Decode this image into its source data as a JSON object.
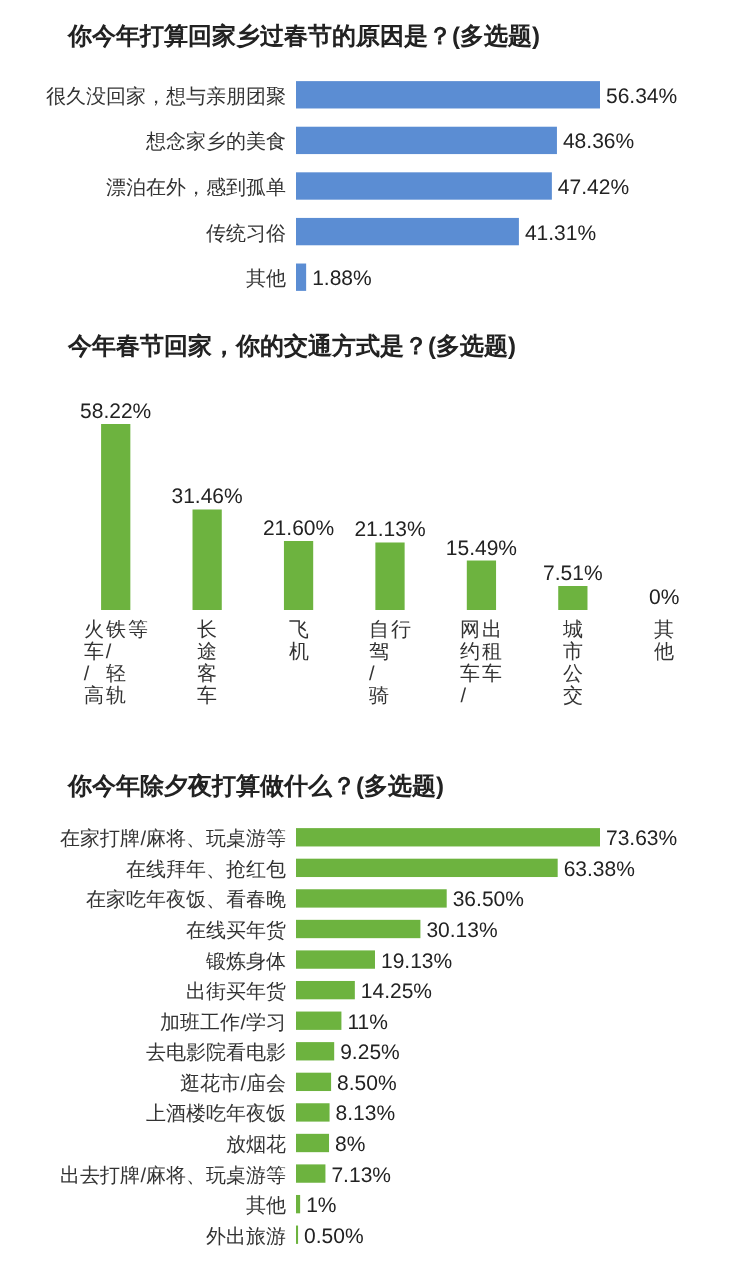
{
  "chart_data": [
    {
      "type": "bar",
      "orientation": "horizontal",
      "title": "你今年打算回家乡过春节的原因是？(多选题)",
      "categories": [
        "很久没回家，想与亲朋团聚",
        "想念家乡的美食",
        "漂泊在外，感到孤单",
        "传统习俗",
        "其他"
      ],
      "values": [
        56.34,
        48.36,
        47.42,
        41.31,
        1.88
      ],
      "color": "#5b8dd3",
      "value_labels": [
        "56.34%",
        "48.36%",
        "47.42%",
        "41.31%",
        "1.88%"
      ]
    },
    {
      "type": "bar",
      "title": "今年春节回家，你的交通方式是？(多选题)",
      "categories": [
        "火车/高铁/轻轨等",
        "长途客车",
        "飞机",
        "自驾/骑行",
        "网约车/出租车",
        "城市公交",
        "其他"
      ],
      "values": [
        58.22,
        31.46,
        21.6,
        21.13,
        15.49,
        7.51,
        0
      ],
      "color": "#6db33f",
      "value_labels": [
        "58.22%",
        "31.46%",
        "21.60%",
        "21.13%",
        "15.49%",
        "7.51%",
        "0%"
      ]
    },
    {
      "type": "bar",
      "orientation": "horizontal",
      "title": "你今年除夕夜打算做什么？(多选题)",
      "categories": [
        "在家打牌/麻将、玩桌游等",
        "在线拜年、抢红包",
        "在家吃年夜饭、看春晚",
        "在线买年货",
        "锻炼身体",
        "出街买年货",
        "加班工作/学习",
        "去电影院看电影",
        "逛花市/庙会",
        "上酒楼吃年夜饭",
        "放烟花",
        "出去打牌/麻将、玩桌游等",
        "其他",
        "外出旅游"
      ],
      "values": [
        73.63,
        63.38,
        36.5,
        30.13,
        19.13,
        14.25,
        11,
        9.25,
        8.5,
        8.13,
        8,
        7.13,
        1,
        0.5
      ],
      "color": "#6db33f",
      "value_labels": [
        "73.63%",
        "63.38%",
        "36.50%",
        "30.13%",
        "19.13%",
        "14.25%",
        "11%",
        "9.25%",
        "8.50%",
        "8.13%",
        "8%",
        "7.13%",
        "1%",
        "0.50%"
      ]
    }
  ]
}
